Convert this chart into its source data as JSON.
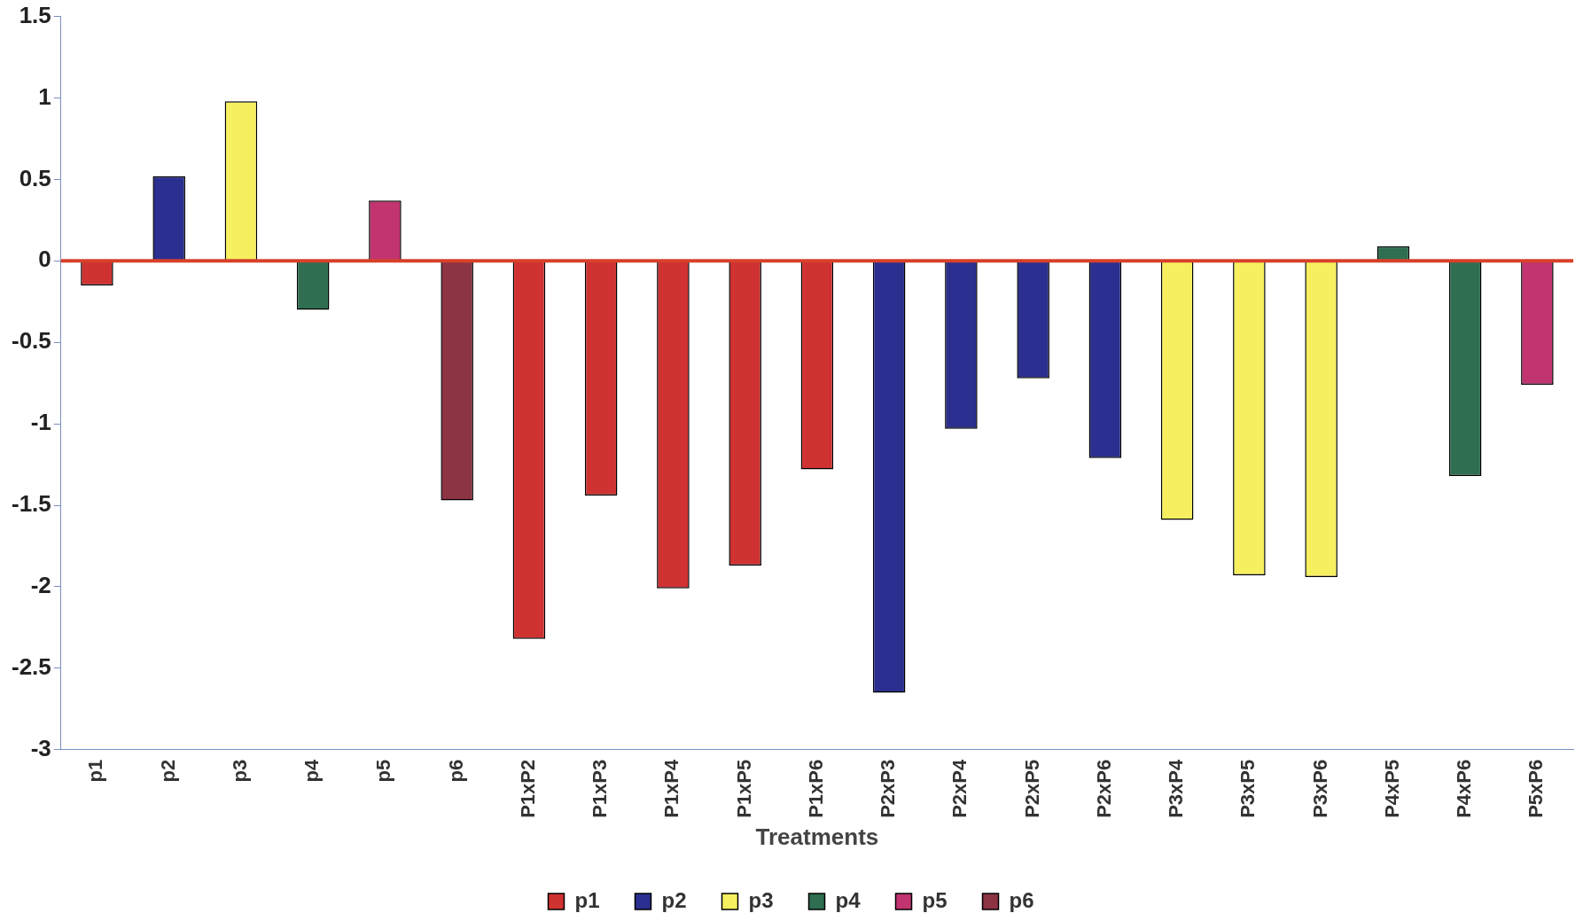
{
  "chart_data": {
    "type": "bar",
    "xlabel": "Treatments",
    "categories": [
      "p1",
      "p2",
      "p3",
      "p4",
      "p5",
      "p6",
      "P1xP2",
      "P1xP3",
      "P1xP4",
      "P1xP5",
      "P1xP6",
      "P2xP3",
      "P2xP4",
      "P2xP5",
      "P2xP6",
      "P3xP4",
      "P3xP5",
      "P3xP6",
      "P4xP5",
      "P4xP6",
      "P5xP6"
    ],
    "series": [
      {
        "name": "p1",
        "color": "#d03232",
        "values": [
          -0.15,
          null,
          null,
          null,
          null,
          null,
          null,
          null,
          null,
          null,
          null,
          null,
          null,
          null,
          null,
          null,
          null,
          null,
          null,
          null,
          null
        ]
      },
      {
        "name": "p2",
        "color": "#2b2f8f",
        "values": [
          null,
          0.52,
          null,
          null,
          null,
          null,
          null,
          null,
          null,
          null,
          null,
          null,
          null,
          null,
          null,
          null,
          null,
          null,
          null,
          null,
          null
        ]
      },
      {
        "name": "p3",
        "color": "#f6f060",
        "values": [
          null,
          null,
          0.98,
          null,
          null,
          null,
          null,
          null,
          null,
          null,
          null,
          null,
          null,
          null,
          null,
          null,
          null,
          null,
          null,
          null,
          null
        ]
      },
      {
        "name": "p4",
        "color": "#2f6e50",
        "values": [
          null,
          null,
          null,
          -0.3,
          null,
          null,
          null,
          null,
          null,
          null,
          null,
          null,
          null,
          null,
          null,
          null,
          null,
          null,
          null,
          null,
          null
        ]
      },
      {
        "name": "p5",
        "color": "#c23470",
        "values": [
          null,
          null,
          null,
          null,
          0.37,
          null,
          null,
          null,
          null,
          null,
          null,
          null,
          null,
          null,
          null,
          null,
          null,
          null,
          null,
          null,
          null
        ]
      },
      {
        "name": "p6",
        "color": "#8c3444",
        "values": [
          null,
          null,
          null,
          null,
          null,
          -1.47,
          null,
          null,
          null,
          null,
          null,
          null,
          null,
          null,
          null,
          null,
          null,
          null,
          null,
          null,
          null
        ]
      },
      {
        "colors": [
          "#d03232",
          "#d03232",
          "#d03232",
          "#d03232",
          "#d03232",
          "#d03232",
          "#d03232",
          "#d03232",
          "#d03232",
          "#d03232",
          "#d03232",
          "#2b2f8f",
          "#2b2f8f",
          "#2b2f8f",
          "#2b2f8f",
          "#f6f060",
          "#f6f060",
          "#f6f060",
          "#2f6e50",
          "#2f6e50",
          "#c23470"
        ],
        "values": [
          null,
          null,
          null,
          null,
          null,
          null,
          -2.32,
          -1.44,
          -2.01,
          -1.87,
          -1.28,
          -2.65,
          -1.03,
          -0.72,
          -1.21,
          -1.59,
          -1.93,
          -1.94,
          0.09,
          -1.32,
          -0.76
        ]
      }
    ],
    "ylim": [
      -3,
      1.5
    ],
    "yticks": [
      -3,
      -2.5,
      -2,
      -1.5,
      -1,
      -0.5,
      0,
      0.5,
      1,
      1.5
    ],
    "legend": "bottom",
    "ref_lines": [
      {
        "axis": "y",
        "value": 0,
        "color": "#d8402a"
      }
    ]
  }
}
